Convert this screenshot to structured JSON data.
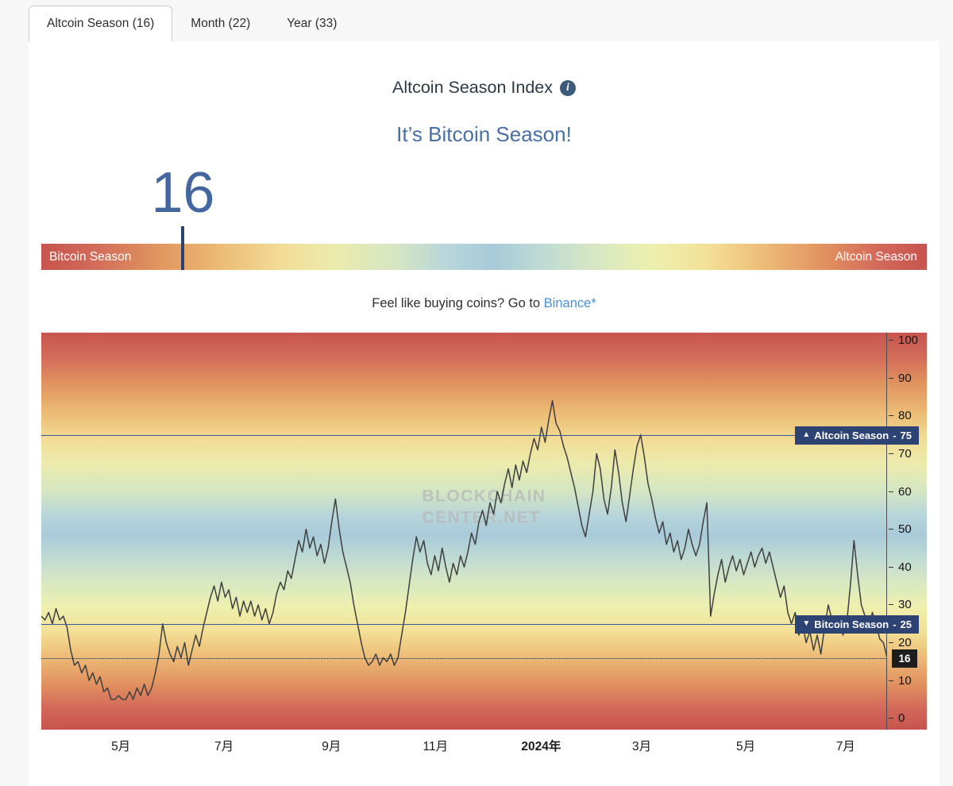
{
  "tabs": [
    {
      "label": "Altcoin Season (16)",
      "active": true
    },
    {
      "label": "Month (22)",
      "active": false
    },
    {
      "label": "Year (33)",
      "active": false
    }
  ],
  "header": {
    "title": "Altcoin Season Index",
    "info_icon": "i",
    "season_headline": "It’s Bitcoin Season!",
    "index_value": "16"
  },
  "gauge": {
    "left_label": "Bitcoin Season",
    "right_label": "Altcoin Season",
    "value": 16
  },
  "cta": {
    "prefix": "Feel like buying coins? Go to ",
    "link_text": "Binance",
    "suffix": "*"
  },
  "chart": {
    "watermark": [
      "BLOCKCHAIN",
      "CENTER.NET"
    ],
    "altcoin_threshold": {
      "icon": "▲",
      "label": "Altcoin Season",
      "separator": "-",
      "value": 75
    },
    "bitcoin_threshold": {
      "icon": "▼",
      "label": "Bitcoin Season",
      "separator": "-",
      "value": 25
    },
    "current_value": 16,
    "x_ticks": [
      {
        "label": "5月",
        "pos": 0.094,
        "bold": false
      },
      {
        "label": "7月",
        "pos": 0.216,
        "bold": false
      },
      {
        "label": "9月",
        "pos": 0.343,
        "bold": false
      },
      {
        "label": "11月",
        "pos": 0.466,
        "bold": false
      },
      {
        "label": "2024年",
        "pos": 0.591,
        "bold": true
      },
      {
        "label": "3月",
        "pos": 0.71,
        "bold": false
      },
      {
        "label": "5月",
        "pos": 0.833,
        "bold": false
      },
      {
        "label": "7月",
        "pos": 0.951,
        "bold": false
      }
    ]
  },
  "chart_data": {
    "type": "line",
    "title": "Altcoin Season Index",
    "ylim": [
      0,
      100
    ],
    "y_axis_position": "right",
    "y_ticks": [
      0,
      10,
      20,
      30,
      40,
      50,
      60,
      70,
      80,
      90,
      100
    ],
    "x_axis_labels": [
      "5月",
      "7月",
      "9月",
      "11月",
      "2024年",
      "3月",
      "5月",
      "7月"
    ],
    "thresholds": {
      "altcoin_season": 75,
      "bitcoin_season": 25,
      "current": 16
    },
    "series": [
      {
        "name": "Altcoin Season Index",
        "values": [
          27,
          26,
          28,
          25,
          29,
          26,
          27,
          24,
          18,
          14,
          15,
          12,
          14,
          10,
          12,
          9,
          11,
          7,
          8,
          5,
          5,
          6,
          5,
          5,
          7,
          5,
          8,
          6,
          9,
          6,
          8,
          12,
          17,
          25,
          20,
          17,
          15,
          19,
          16,
          20,
          14,
          18,
          22,
          19,
          24,
          28,
          32,
          35,
          31,
          36,
          32,
          34,
          29,
          32,
          27,
          31,
          28,
          31,
          27,
          30,
          26,
          29,
          25,
          28,
          33,
          36,
          34,
          39,
          37,
          42,
          47,
          44,
          50,
          45,
          48,
          43,
          46,
          41,
          45,
          52,
          58,
          50,
          44,
          40,
          36,
          30,
          25,
          20,
          16,
          14,
          15,
          17,
          14,
          16,
          15,
          17,
          14,
          16,
          22,
          28,
          35,
          42,
          48,
          44,
          47,
          41,
          38,
          43,
          39,
          45,
          40,
          36,
          41,
          38,
          43,
          40,
          44,
          49,
          46,
          52,
          55,
          51,
          57,
          54,
          60,
          57,
          62,
          66,
          61,
          67,
          63,
          68,
          65,
          70,
          74,
          71,
          77,
          73,
          79,
          84,
          78,
          76,
          72,
          69,
          65,
          61,
          56,
          51,
          48,
          54,
          60,
          70,
          66,
          58,
          54,
          61,
          71,
          65,
          57,
          52,
          59,
          66,
          72,
          75,
          69,
          62,
          58,
          53,
          49,
          52,
          46,
          49,
          44,
          47,
          42,
          45,
          50,
          46,
          43,
          46,
          52,
          57,
          27,
          33,
          38,
          42,
          36,
          40,
          43,
          39,
          42,
          38,
          41,
          44,
          40,
          43,
          45,
          41,
          44,
          40,
          36,
          32,
          35,
          28,
          25,
          28,
          22,
          25,
          20,
          23,
          18,
          22,
          17,
          24,
          30,
          26,
          23,
          27,
          22,
          25,
          35,
          47,
          38,
          30,
          27,
          24,
          28,
          25,
          21,
          20,
          16
        ]
      }
    ]
  },
  "colors": {
    "headline_blue": "#4a6fa5",
    "big_value_blue": "#44669e",
    "marker_navy": "#2c4270",
    "badge_navy": "#2d4373",
    "current_badge_bg": "#1d1d1d",
    "link_blue": "#4a90d9",
    "line": "#3f3f3f",
    "season_gradient": [
      [
        "0%",
        "#c7544e"
      ],
      [
        "6%",
        "#d26b5a"
      ],
      [
        "13%",
        "#e0945f"
      ],
      [
        "20%",
        "#ecba74"
      ],
      [
        "27%",
        "#f2dc96"
      ],
      [
        "33%",
        "#ecebad"
      ],
      [
        "40%",
        "#d5e6c2"
      ],
      [
        "46%",
        "#b7d5da"
      ],
      [
        "51%",
        "#a8cada"
      ],
      [
        "57%",
        "#c0dbd3"
      ],
      [
        "63%",
        "#d9e8c2"
      ],
      [
        "69%",
        "#edf0ae"
      ],
      [
        "75%",
        "#f3e198"
      ],
      [
        "81%",
        "#eebf7a"
      ],
      [
        "88%",
        "#e29460"
      ],
      [
        "95%",
        "#d2665a"
      ],
      [
        "100%",
        "#c7544e"
      ]
    ]
  }
}
